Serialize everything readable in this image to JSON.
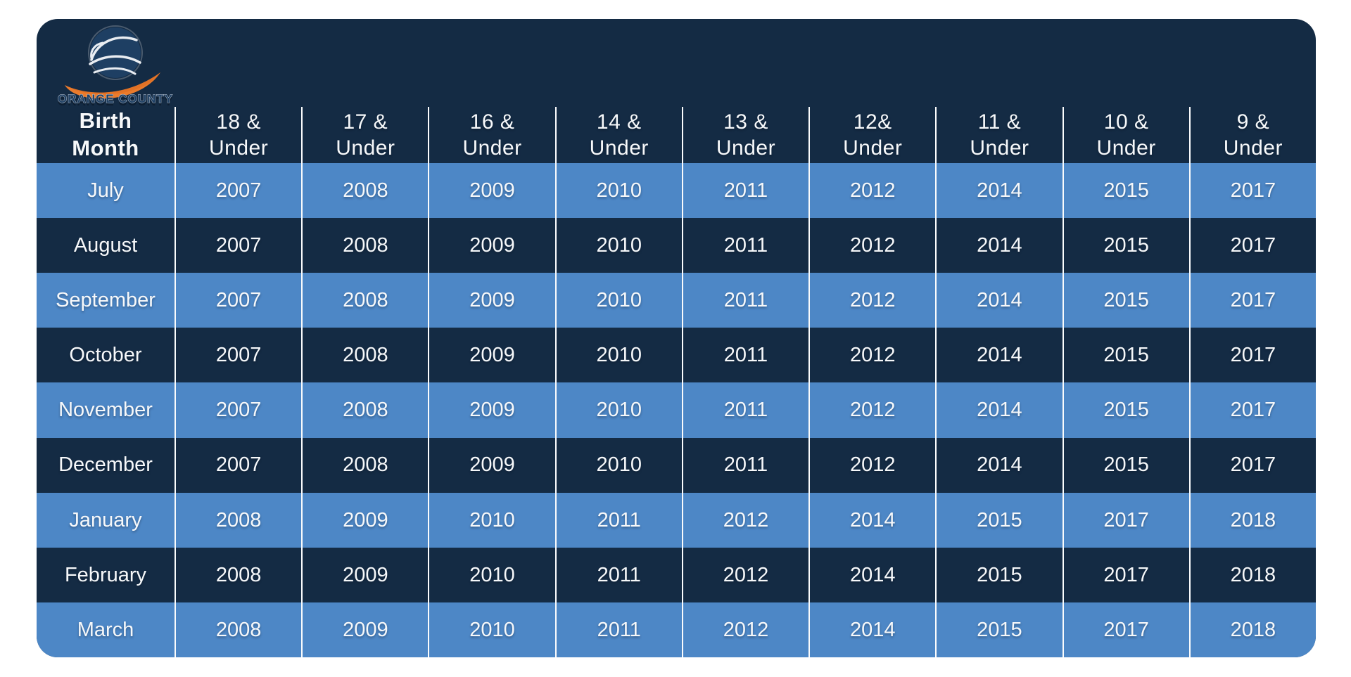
{
  "colors": {
    "page_background": "#FFFFFF",
    "board_navy": "#142B44",
    "row_light_blue": "#4D87C6",
    "divider_white": "#FBFCFD",
    "text_white": "#F6F8FA",
    "logo_orange": "#EA7B2C",
    "logo_navy": "#1E3F63"
  },
  "logo": {
    "org_text": "ORANGE COUNTY"
  },
  "table": {
    "header": [
      "Birth\nMonth",
      "18 &\nUnder",
      "17 &\nUnder",
      "16 &\nUnder",
      "14 &\nUnder",
      "13 &\nUnder",
      "12&\nUnder",
      "11 &\nUnder",
      "10 &\nUnder",
      "9 &\nUnder"
    ],
    "rows": [
      {
        "month": "July",
        "years": [
          "2007",
          "2008",
          "2009",
          "2010",
          "2011",
          "2012",
          "2014",
          "2015",
          "2017"
        ]
      },
      {
        "month": "August",
        "years": [
          "2007",
          "2008",
          "2009",
          "2010",
          "2011",
          "2012",
          "2014",
          "2015",
          "2017"
        ]
      },
      {
        "month": "September",
        "years": [
          "2007",
          "2008",
          "2009",
          "2010",
          "2011",
          "2012",
          "2014",
          "2015",
          "2017"
        ]
      },
      {
        "month": "October",
        "years": [
          "2007",
          "2008",
          "2009",
          "2010",
          "2011",
          "2012",
          "2014",
          "2015",
          "2017"
        ]
      },
      {
        "month": "November",
        "years": [
          "2007",
          "2008",
          "2009",
          "2010",
          "2011",
          "2012",
          "2014",
          "2015",
          "2017"
        ]
      },
      {
        "month": "December",
        "years": [
          "2007",
          "2008",
          "2009",
          "2010",
          "2011",
          "2012",
          "2014",
          "2015",
          "2017"
        ]
      },
      {
        "month": "January",
        "years": [
          "2008",
          "2009",
          "2010",
          "2011",
          "2012",
          "2014",
          "2015",
          "2017",
          "2018"
        ]
      },
      {
        "month": "February",
        "years": [
          "2008",
          "2009",
          "2010",
          "2011",
          "2012",
          "2014",
          "2015",
          "2017",
          "2018"
        ]
      },
      {
        "month": "March",
        "years": [
          "2008",
          "2009",
          "2010",
          "2011",
          "2012",
          "2014",
          "2015",
          "2017",
          "2018"
        ]
      }
    ]
  }
}
